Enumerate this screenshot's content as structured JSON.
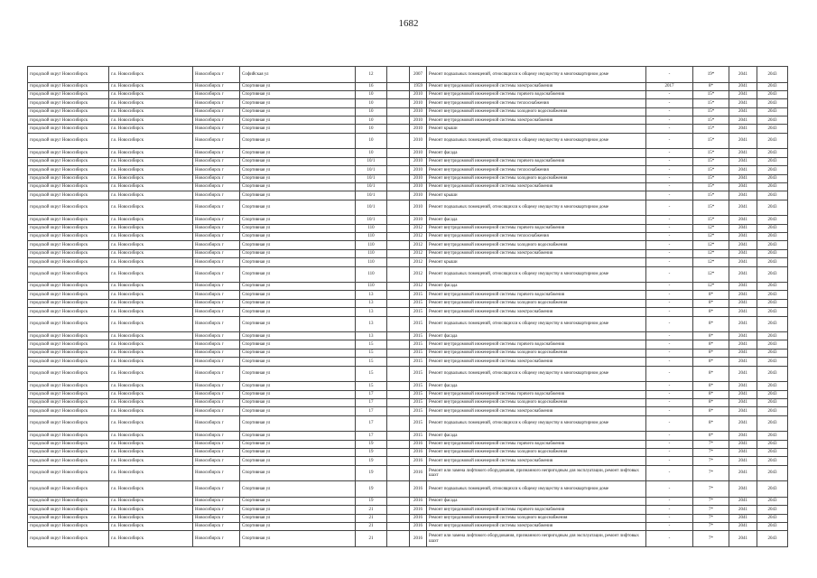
{
  "page_number": "1682",
  "common": {
    "district": "городской округ Новосибирск",
    "municipality": "г.о. Новосибирск",
    "city": "Новосибирск г"
  },
  "works": {
    "G": "Ремонт внутридомовой инженерной системы горячего водоснабжения",
    "T": "Ремонт внутридомовой инженерной системы теплоснабжения",
    "C": "Ремонт внутридомовой инженерной системы холодного водоснабжения",
    "E": "Ремонт внутридомовой инженерной системы электроснабжения",
    "K": "Ремонт крыши",
    "P": "Ремонт подвальных помещений, относящихся к общему имуществу в многоквартирном доме",
    "F": "Ремонт фасада",
    "L": "Ремонт или замена лифтового оборудования, признанного непригодным для эксплуатации, ремонт лифтовых шахт"
  },
  "rows": [
    {
      "street": "Софийская ул",
      "house": "12",
      "year": "2007",
      "work": "P",
      "prev": "-",
      "period": "19*",
      "from": "2041",
      "to": "2043"
    },
    {
      "street": "Спортивная ул",
      "house": "16",
      "year": "1959",
      "work": "E",
      "prev": "2017",
      "period": "8*",
      "from": "2041",
      "to": "2043"
    },
    {
      "street": "Спортивная ул",
      "house": "10",
      "year": "2010",
      "work": "G",
      "prev": "-",
      "period": "15*",
      "from": "2041",
      "to": "2043"
    },
    {
      "street": "Спортивная ул",
      "house": "10",
      "year": "2010",
      "work": "T",
      "prev": "-",
      "period": "15*",
      "from": "2041",
      "to": "2043"
    },
    {
      "street": "Спортивная ул",
      "house": "10",
      "year": "2010",
      "work": "C",
      "prev": "-",
      "period": "15*",
      "from": "2041",
      "to": "2043"
    },
    {
      "street": "Спортивная ул",
      "house": "10",
      "year": "2010",
      "work": "E",
      "prev": "-",
      "period": "15*",
      "from": "2041",
      "to": "2043"
    },
    {
      "street": "Спортивная ул",
      "house": "10",
      "year": "2010",
      "work": "K",
      "prev": "-",
      "period": "15*",
      "from": "2041",
      "to": "2043"
    },
    {
      "street": "Спортивная ул",
      "house": "10",
      "year": "2010",
      "work": "P",
      "prev": "-",
      "period": "15*",
      "from": "2041",
      "to": "2043"
    },
    {
      "street": "Спортивная ул",
      "house": "10",
      "year": "2010",
      "work": "F",
      "prev": "-",
      "period": "15*",
      "from": "2041",
      "to": "2043"
    },
    {
      "street": "Спортивная ул",
      "house": "10/1",
      "year": "2010",
      "work": "G",
      "prev": "-",
      "period": "15*",
      "from": "2041",
      "to": "2043"
    },
    {
      "street": "Спортивная ул",
      "house": "10/1",
      "year": "2010",
      "work": "T",
      "prev": "-",
      "period": "15*",
      "from": "2041",
      "to": "2043"
    },
    {
      "street": "Спортивная ул",
      "house": "10/1",
      "year": "2010",
      "work": "C",
      "prev": "-",
      "period": "15*",
      "from": "2041",
      "to": "2043"
    },
    {
      "street": "Спортивная ул",
      "house": "10/1",
      "year": "2010",
      "work": "E",
      "prev": "-",
      "period": "15*",
      "from": "2041",
      "to": "2043"
    },
    {
      "street": "Спортивная ул",
      "house": "10/1",
      "year": "2010",
      "work": "K",
      "prev": "-",
      "period": "15*",
      "from": "2041",
      "to": "2043"
    },
    {
      "street": "Спортивная ул",
      "house": "10/1",
      "year": "2010",
      "work": "P",
      "prev": "-",
      "period": "15*",
      "from": "2041",
      "to": "2043"
    },
    {
      "street": "Спортивная ул",
      "house": "10/1",
      "year": "2010",
      "work": "F",
      "prev": "-",
      "period": "15*",
      "from": "2041",
      "to": "2043"
    },
    {
      "street": "Спортивная ул",
      "house": "110",
      "year": "2012",
      "work": "G",
      "prev": "-",
      "period": "12*",
      "from": "2041",
      "to": "2043"
    },
    {
      "street": "Спортивная ул",
      "house": "110",
      "year": "2012",
      "work": "T",
      "prev": "-",
      "period": "12*",
      "from": "2041",
      "to": "2043"
    },
    {
      "street": "Спортивная ул",
      "house": "110",
      "year": "2012",
      "work": "C",
      "prev": "-",
      "period": "12*",
      "from": "2041",
      "to": "2043"
    },
    {
      "street": "Спортивная ул",
      "house": "110",
      "year": "2012",
      "work": "E",
      "prev": "-",
      "period": "12*",
      "from": "2041",
      "to": "2043"
    },
    {
      "street": "Спортивная ул",
      "house": "110",
      "year": "2012",
      "work": "K",
      "prev": "-",
      "period": "12*",
      "from": "2041",
      "to": "2043"
    },
    {
      "street": "Спортивная ул",
      "house": "110",
      "year": "2012",
      "work": "P",
      "prev": "-",
      "period": "12*",
      "from": "2041",
      "to": "2043"
    },
    {
      "street": "Спортивная ул",
      "house": "110",
      "year": "2012",
      "work": "F",
      "prev": "-",
      "period": "12*",
      "from": "2041",
      "to": "2043"
    },
    {
      "street": "Спортивная ул",
      "house": "13",
      "year": "2015",
      "work": "G",
      "prev": "-",
      "period": "8*",
      "from": "2041",
      "to": "2043"
    },
    {
      "street": "Спортивная ул",
      "house": "13",
      "year": "2015",
      "work": "C",
      "prev": "-",
      "period": "8*",
      "from": "2041",
      "to": "2043"
    },
    {
      "street": "Спортивная ул",
      "house": "13",
      "year": "2015",
      "work": "E",
      "prev": "-",
      "period": "8*",
      "from": "2041",
      "to": "2043"
    },
    {
      "street": "Спортивная ул",
      "house": "13",
      "year": "2015",
      "work": "P",
      "prev": "-",
      "period": "8*",
      "from": "2041",
      "to": "2043"
    },
    {
      "street": "Спортивная ул",
      "house": "13",
      "year": "2015",
      "work": "F",
      "prev": "-",
      "period": "8*",
      "from": "2041",
      "to": "2043"
    },
    {
      "street": "Спортивная ул",
      "house": "15",
      "year": "2015",
      "work": "G",
      "prev": "-",
      "period": "8*",
      "from": "2041",
      "to": "2043"
    },
    {
      "street": "Спортивная ул",
      "house": "15",
      "year": "2015",
      "work": "C",
      "prev": "-",
      "period": "8*",
      "from": "2041",
      "to": "2043"
    },
    {
      "street": "Спортивная ул",
      "house": "15",
      "year": "2015",
      "work": "E",
      "prev": "-",
      "period": "8*",
      "from": "2041",
      "to": "2043"
    },
    {
      "street": "Спортивная ул",
      "house": "15",
      "year": "2015",
      "work": "P",
      "prev": "-",
      "period": "8*",
      "from": "2041",
      "to": "2043"
    },
    {
      "street": "Спортивная ул",
      "house": "15",
      "year": "2015",
      "work": "F",
      "prev": "-",
      "period": "8*",
      "from": "2041",
      "to": "2043"
    },
    {
      "street": "Спортивная ул",
      "house": "17",
      "year": "2015",
      "work": "G",
      "prev": "-",
      "period": "8*",
      "from": "2041",
      "to": "2043"
    },
    {
      "street": "Спортивная ул",
      "house": "17",
      "year": "2015",
      "work": "C",
      "prev": "-",
      "period": "8*",
      "from": "2041",
      "to": "2043"
    },
    {
      "street": "Спортивная ул",
      "house": "17",
      "year": "2015",
      "work": "E",
      "prev": "-",
      "period": "8*",
      "from": "2041",
      "to": "2043"
    },
    {
      "street": "Спортивная ул",
      "house": "17",
      "year": "2015",
      "work": "P",
      "prev": "-",
      "period": "8*",
      "from": "2041",
      "to": "2043"
    },
    {
      "street": "Спортивная ул",
      "house": "17",
      "year": "2015",
      "work": "F",
      "prev": "-",
      "period": "8*",
      "from": "2041",
      "to": "2043"
    },
    {
      "street": "Спортивная ул",
      "house": "19",
      "year": "2016",
      "work": "G",
      "prev": "-",
      "period": "7*",
      "from": "2041",
      "to": "2043"
    },
    {
      "street": "Спортивная ул",
      "house": "19",
      "year": "2016",
      "work": "C",
      "prev": "-",
      "period": "7*",
      "from": "2041",
      "to": "2043"
    },
    {
      "street": "Спортивная ул",
      "house": "19",
      "year": "2016",
      "work": "E",
      "prev": "-",
      "period": "7*",
      "from": "2041",
      "to": "2043"
    },
    {
      "street": "Спортивная ул",
      "house": "19",
      "year": "2016",
      "work": "L",
      "prev": "-",
      "period": "7*",
      "from": "2041",
      "to": "2043"
    },
    {
      "street": "Спортивная ул",
      "house": "19",
      "year": "2016",
      "work": "P",
      "prev": "-",
      "period": "7*",
      "from": "2041",
      "to": "2043"
    },
    {
      "street": "Спортивная ул",
      "house": "19",
      "year": "2016",
      "work": "F",
      "prev": "-",
      "period": "7*",
      "from": "2041",
      "to": "2043"
    },
    {
      "street": "Спортивная ул",
      "house": "21",
      "year": "2016",
      "work": "G",
      "prev": "-",
      "period": "7*",
      "from": "2041",
      "to": "2043"
    },
    {
      "street": "Спортивная ул",
      "house": "21",
      "year": "2016",
      "work": "C",
      "prev": "-",
      "period": "7*",
      "from": "2041",
      "to": "2043"
    },
    {
      "street": "Спортивная ул",
      "house": "21",
      "year": "2016",
      "work": "E",
      "prev": "-",
      "period": "7*",
      "from": "2041",
      "to": "2043"
    },
    {
      "street": "Спортивная ул",
      "house": "21",
      "year": "2016",
      "work": "L",
      "prev": "-",
      "period": "7*",
      "from": "2041",
      "to": "2043"
    }
  ]
}
